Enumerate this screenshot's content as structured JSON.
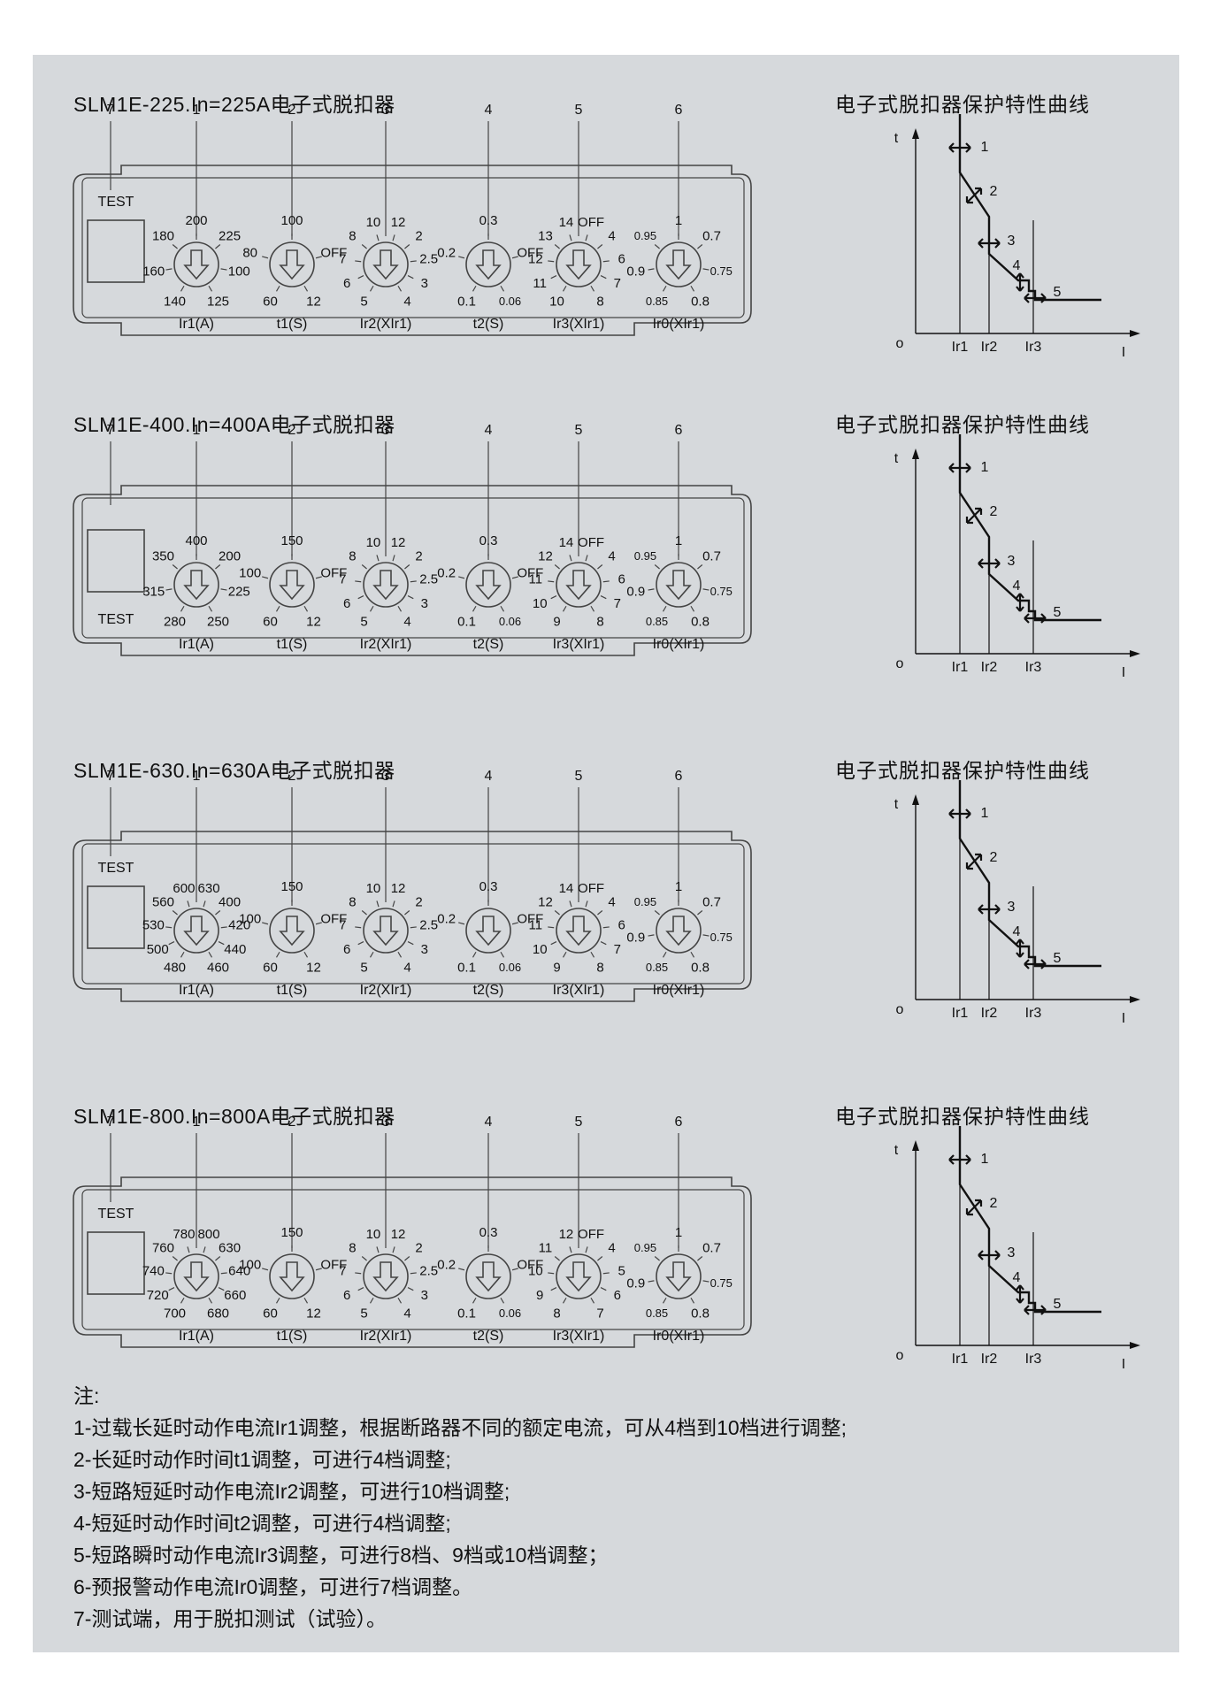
{
  "colors": {
    "background": "#d6d9dc",
    "stroke": "#444444",
    "curve": "#111111"
  },
  "curve_labels": {
    "title": "电子式脱扣器保护特性曲线",
    "t_axis": "t",
    "i_axis": "I",
    "origin": "o",
    "ir1": "Ir1",
    "ir2": "Ir2",
    "ir3": "Ir3",
    "markers": [
      "1",
      "2",
      "3",
      "4",
      "5"
    ]
  },
  "knob_captions": [
    "Ir1(A)",
    "t1(S)",
    "Ir2(XIr1)",
    "t2(S)",
    "Ir3(XIr1)",
    "Ir0(XIr1)"
  ],
  "callouts": [
    "7",
    "1",
    "2",
    "3",
    "4",
    "5",
    "6"
  ],
  "test_label": "TEST",
  "sections": [
    {
      "title": "SLM1E-225.In=225A电子式脱扣器",
      "test_position": "top",
      "knobs": [
        [
          "140",
          "160",
          "180",
          "200",
          "225",
          "100",
          "125"
        ],
        [
          "60",
          "80",
          "100",
          "OFF",
          "12"
        ],
        [
          "5",
          "6",
          "7",
          "8",
          "10",
          "12",
          "2",
          "2.5",
          "3",
          "4"
        ],
        [
          "0.1",
          "0.2",
          "0.3",
          "OFF",
          "0.06"
        ],
        [
          "10",
          "11",
          "12",
          "13",
          "14",
          "OFF",
          "4",
          "6",
          "7",
          "8"
        ],
        [
          "0.85",
          "0.9",
          "0.95",
          "1",
          "0.7",
          "0.75",
          "0.8"
        ]
      ]
    },
    {
      "title": "SLM1E-400.In=400A电子式脱扣器",
      "test_position": "bottom",
      "knobs": [
        [
          "280",
          "315",
          "350",
          "400",
          "200",
          "225",
          "250"
        ],
        [
          "60",
          "100",
          "150",
          "OFF",
          "12"
        ],
        [
          "5",
          "6",
          "7",
          "8",
          "10",
          "12",
          "2",
          "2.5",
          "3",
          "4"
        ],
        [
          "0.1",
          "0.2",
          "0.3",
          "OFF",
          "0.06"
        ],
        [
          "9",
          "10",
          "11",
          "12",
          "14",
          "OFF",
          "4",
          "6",
          "7",
          "8"
        ],
        [
          "0.85",
          "0.9",
          "0.95",
          "1",
          "0.7",
          "0.75",
          "0.8"
        ]
      ]
    },
    {
      "title": "SLM1E-630.In=630A电子式脱扣器",
      "test_position": "top",
      "knobs": [
        [
          "480",
          "500",
          "530",
          "560",
          "600",
          "630",
          "400",
          "420",
          "440",
          "460"
        ],
        [
          "60",
          "100",
          "150",
          "OFF",
          "12"
        ],
        [
          "5",
          "6",
          "7",
          "8",
          "10",
          "12",
          "2",
          "2.5",
          "3",
          "4"
        ],
        [
          "0.1",
          "0.2",
          "0.3",
          "OFF",
          "0.06"
        ],
        [
          "9",
          "10",
          "11",
          "12",
          "14",
          "OFF",
          "4",
          "6",
          "7",
          "8"
        ],
        [
          "0.85",
          "0.9",
          "0.95",
          "1",
          "0.7",
          "0.75",
          "0.8"
        ]
      ]
    },
    {
      "title": "SLM1E-800.In=800A电子式脱扣器",
      "test_position": "top",
      "knobs": [
        [
          "700",
          "720",
          "740",
          "760",
          "780",
          "800",
          "630",
          "640",
          "660",
          "680"
        ],
        [
          "60",
          "100",
          "150",
          "OFF",
          "12"
        ],
        [
          "5",
          "6",
          "7",
          "8",
          "10",
          "12",
          "2",
          "2.5",
          "3",
          "4"
        ],
        [
          "0.1",
          "0.2",
          "0.3",
          "OFF",
          "0.06"
        ],
        [
          "8",
          "9",
          "10",
          "11",
          "12",
          "OFF",
          "4",
          "5",
          "6",
          "7"
        ],
        [
          "0.85",
          "0.9",
          "0.95",
          "1",
          "0.7",
          "0.75",
          "0.8"
        ]
      ]
    }
  ],
  "notes": {
    "heading": "注:",
    "items": [
      "1-过载长延时动作电流Ir1调整，根据断路器不同的额定电流，可从4档到10档进行调整;",
      "2-长延时动作时间t1调整，可进行4档调整;",
      "3-短路短延时动作电流Ir2调整，可进行10档调整;",
      "4-短延时动作时间t2调整，可进行4档调整;",
      "5-短路瞬时动作电流Ir3调整，可进行8档、9档或10档调整；",
      "6-预报警动作电流Ir0调整，可进行7档调整。",
      "7-测试端，用于脱扣测试（试验）。"
    ]
  }
}
